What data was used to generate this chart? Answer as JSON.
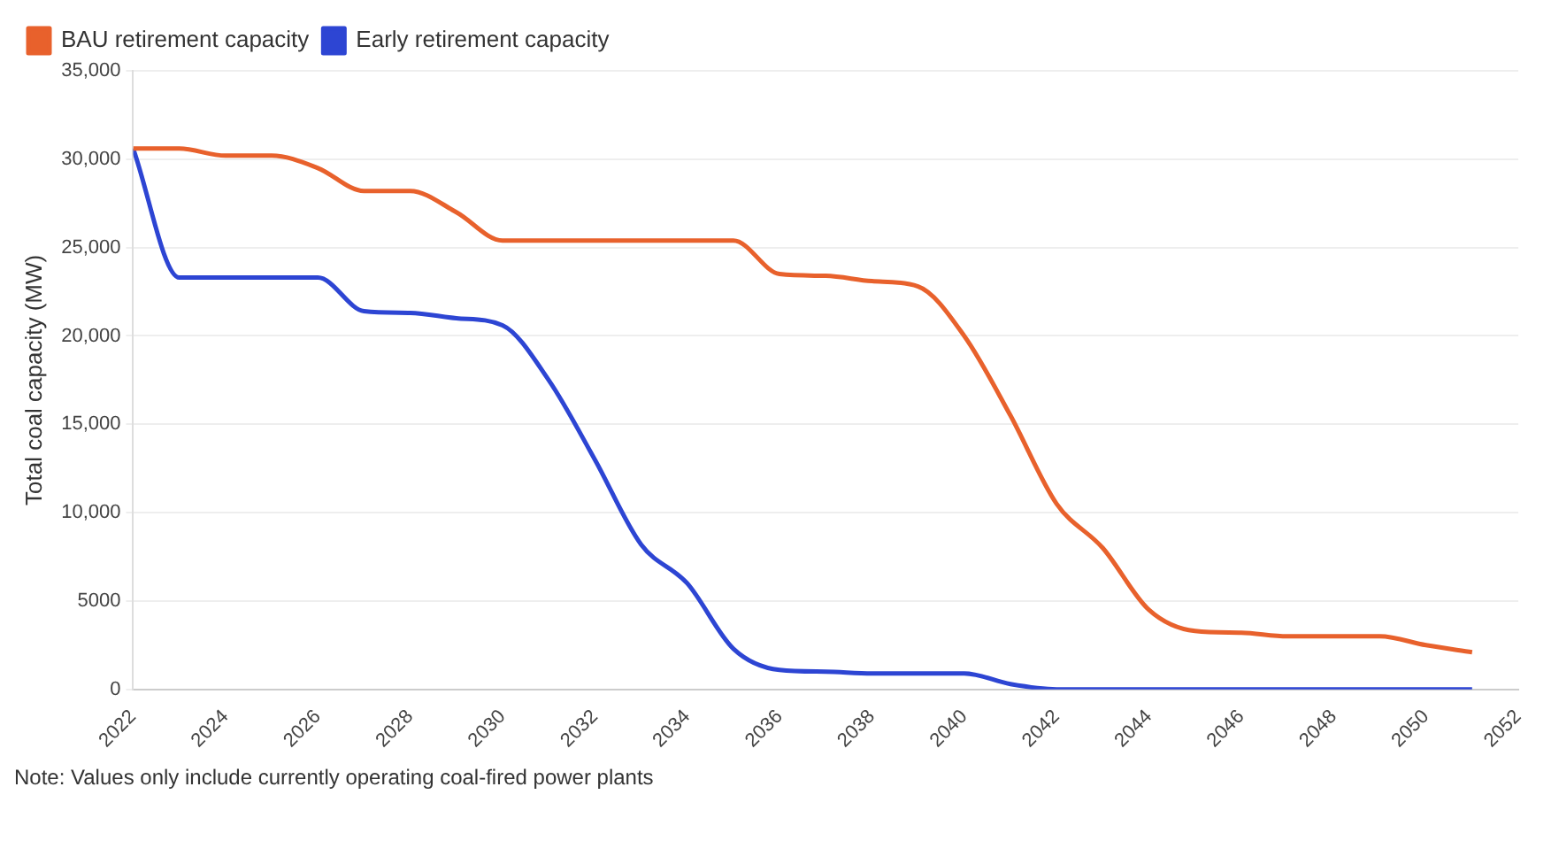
{
  "chart_data": {
    "type": "line",
    "ylabel": "Total coal capacity (MW)",
    "x": [
      2022,
      2023,
      2024,
      2025,
      2026,
      2027,
      2028,
      2029,
      2030,
      2031,
      2032,
      2033,
      2034,
      2035,
      2036,
      2037,
      2038,
      2039,
      2040,
      2041,
      2042,
      2043,
      2044,
      2045,
      2046,
      2047,
      2048,
      2049,
      2050,
      2051
    ],
    "series": [
      {
        "name": "BAU retirement capacity",
        "color": "#e8612c",
        "values": [
          30600,
          30600,
          30200,
          30200,
          29500,
          28200,
          28200,
          27000,
          25400,
          25400,
          25400,
          25400,
          25400,
          25400,
          23500,
          23400,
          23100,
          22800,
          20000,
          15500,
          10500,
          8000,
          4500,
          3300,
          3200,
          3000,
          3000,
          3000,
          2500,
          2100
        ]
      },
      {
        "name": "Early retirement capacity",
        "color": "#2d45d3",
        "values": [
          30600,
          23300,
          23300,
          23300,
          23300,
          21400,
          21300,
          21000,
          20600,
          17500,
          13000,
          8200,
          6000,
          2300,
          1100,
          1000,
          900,
          900,
          900,
          300,
          0,
          0,
          0,
          0,
          0,
          0,
          0,
          0,
          0,
          0
        ]
      }
    ],
    "xlim": [
      2022,
      2052
    ],
    "xticks": [
      2022,
      2024,
      2026,
      2028,
      2030,
      2032,
      2034,
      2036,
      2038,
      2040,
      2042,
      2044,
      2046,
      2048,
      2050,
      2052
    ],
    "ylim": [
      0,
      35000
    ],
    "yticks": [
      0,
      {
        "value": 5000,
        "label": "5000"
      },
      {
        "value": 10000,
        "label": "10,000"
      },
      {
        "value": 15000,
        "label": "15,000"
      },
      {
        "value": 20000,
        "label": "20,000"
      },
      {
        "value": 25000,
        "label": "25,000"
      },
      {
        "value": 30000,
        "label": "30,000"
      },
      {
        "value": 35000,
        "label": "35,000"
      }
    ],
    "grid": "y",
    "legend": "top left",
    "marker": "none",
    "line_style": "solid",
    "annotations": [
      "Note: Values only include currently operating coal-fired power plants"
    ]
  }
}
